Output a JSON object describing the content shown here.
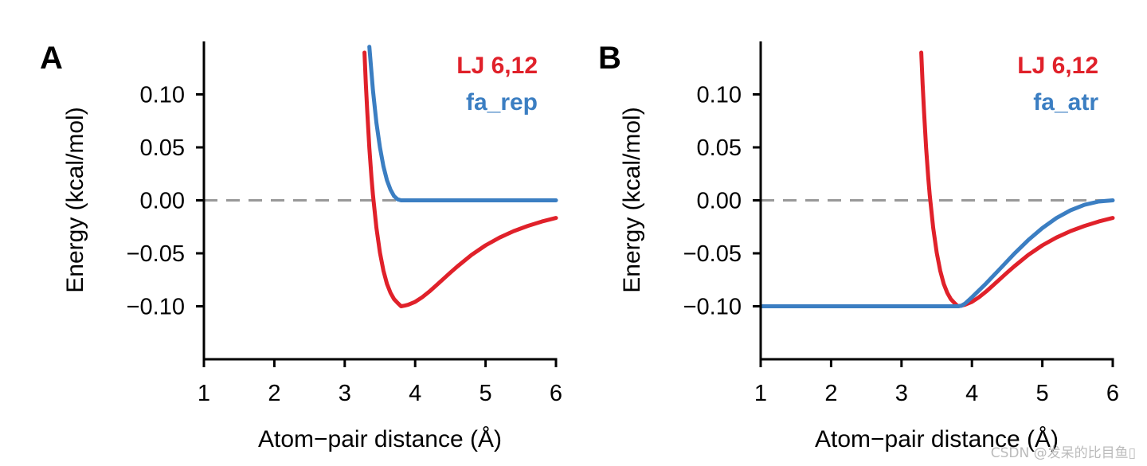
{
  "chart_data": [
    {
      "type": "line",
      "panel": "A",
      "xlabel": "Atom−pair distance (Å)",
      "ylabel": "Energy (kcal/mol)",
      "xlim": [
        1,
        6
      ],
      "ylim": [
        -0.15,
        0.15
      ],
      "xticks": [
        1,
        2,
        3,
        4,
        5,
        6
      ],
      "xtick_labels": [
        "1",
        "2",
        "3",
        "4",
        "5",
        "6"
      ],
      "yticks": [
        0.1,
        0.05,
        0.0,
        -0.05,
        -0.1
      ],
      "ytick_labels": [
        "0.10",
        "0.05",
        "0.00",
        "−0.05",
        "−0.10"
      ],
      "hline": {
        "y": 0,
        "style": "dashed",
        "color": "#999999"
      },
      "legend": {
        "placement": "top-right"
      },
      "series": [
        {
          "name": "LJ 6,12",
          "color": "#E0212A",
          "x": [
            3.28,
            3.3,
            3.32,
            3.35,
            3.38,
            3.4,
            3.45,
            3.5,
            3.55,
            3.6,
            3.65,
            3.7,
            3.75,
            3.8,
            3.85,
            3.9,
            4.0,
            4.1,
            4.2,
            4.3,
            4.4,
            4.5,
            4.6,
            4.8,
            5.0,
            5.2,
            5.4,
            5.6,
            5.8,
            6.0
          ],
          "y": [
            0.1395,
            0.1098,
            0.0835,
            0.0493,
            0.0212,
            0.0053,
            -0.0261,
            -0.0494,
            -0.0665,
            -0.0788,
            -0.0874,
            -0.0932,
            -0.0968,
            -0.1,
            -0.0994,
            -0.0986,
            -0.0958,
            -0.0915,
            -0.0862,
            -0.0803,
            -0.0742,
            -0.0682,
            -0.0624,
            -0.0516,
            -0.0425,
            -0.0351,
            -0.029,
            -0.0241,
            -0.02,
            -0.0166
          ]
        },
        {
          "name": "fa_rep",
          "color": "#3B7EC2",
          "x": [
            3.35,
            3.4,
            3.45,
            3.5,
            3.55,
            3.6,
            3.65,
            3.7,
            3.75,
            3.8,
            4.0,
            4.5,
            5.0,
            5.5,
            6.0
          ],
          "y": [
            0.145,
            0.104,
            0.073,
            0.05,
            0.032,
            0.019,
            0.01,
            0.004,
            0.001,
            0.0,
            0.0,
            0.0,
            0.0,
            0.0,
            0.0
          ]
        }
      ]
    },
    {
      "type": "line",
      "panel": "B",
      "xlabel": "Atom−pair distance (Å)",
      "ylabel": "Energy (kcal/mol)",
      "xlim": [
        1,
        6
      ],
      "ylim": [
        -0.15,
        0.15
      ],
      "xticks": [
        1,
        2,
        3,
        4,
        5,
        6
      ],
      "xtick_labels": [
        "1",
        "2",
        "3",
        "4",
        "5",
        "6"
      ],
      "yticks": [
        0.1,
        0.05,
        0.0,
        -0.05,
        -0.1
      ],
      "ytick_labels": [
        "0.10",
        "0.05",
        "0.00",
        "−0.05",
        "−0.10"
      ],
      "hline": {
        "y": 0,
        "style": "dashed",
        "color": "#999999"
      },
      "legend": {
        "placement": "top-right"
      },
      "series": [
        {
          "name": "LJ 6,12",
          "color": "#E0212A",
          "x": [
            3.28,
            3.3,
            3.32,
            3.35,
            3.38,
            3.4,
            3.45,
            3.5,
            3.55,
            3.6,
            3.65,
            3.7,
            3.75,
            3.8,
            3.85,
            3.9,
            4.0,
            4.1,
            4.2,
            4.3,
            4.4,
            4.5,
            4.6,
            4.8,
            5.0,
            5.2,
            5.4,
            5.6,
            5.8,
            6.0
          ],
          "y": [
            0.1395,
            0.1098,
            0.0835,
            0.0493,
            0.0212,
            0.0053,
            -0.0261,
            -0.0494,
            -0.0665,
            -0.0788,
            -0.0874,
            -0.0932,
            -0.0968,
            -0.1,
            -0.0994,
            -0.0986,
            -0.0958,
            -0.0915,
            -0.0862,
            -0.0803,
            -0.0742,
            -0.0682,
            -0.0624,
            -0.0516,
            -0.0425,
            -0.0351,
            -0.029,
            -0.0241,
            -0.02,
            -0.0166
          ]
        },
        {
          "name": "fa_atr",
          "color": "#3B7EC2",
          "x": [
            1.0,
            2.0,
            3.0,
            3.5,
            3.7,
            3.8,
            3.85,
            3.9,
            4.0,
            4.2,
            4.4,
            4.6,
            4.8,
            5.0,
            5.2,
            5.4,
            5.6,
            5.8,
            6.0
          ],
          "y": [
            -0.1,
            -0.1,
            -0.1,
            -0.1,
            -0.1,
            -0.1,
            -0.0995,
            -0.0975,
            -0.0915,
            -0.0785,
            -0.0645,
            -0.0505,
            -0.0375,
            -0.0262,
            -0.0167,
            -0.0094,
            -0.0042,
            -0.0011,
            0.0
          ]
        }
      ]
    }
  ],
  "watermark": "CSDN @发呆的比目鱼▯"
}
